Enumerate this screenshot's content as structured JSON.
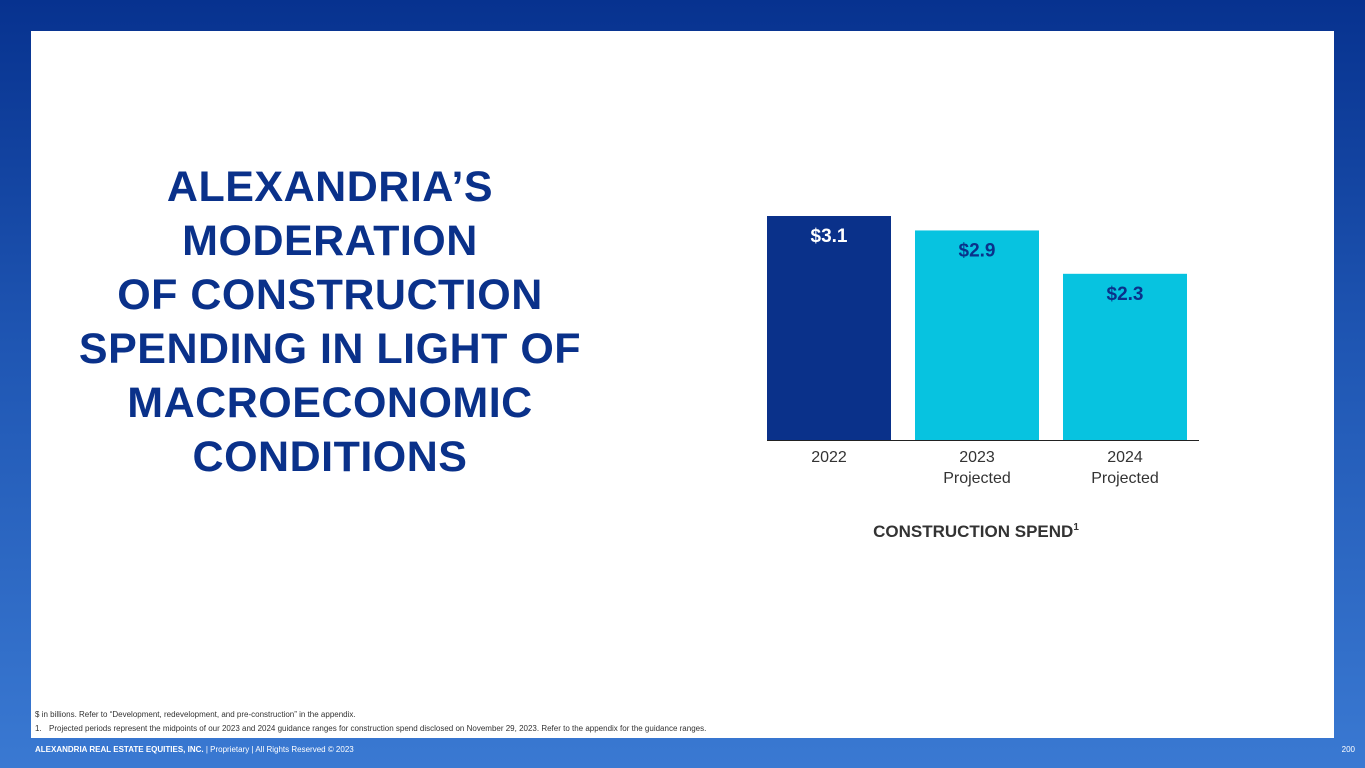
{
  "slide": {
    "headline_lines": [
      "ALEXANDRIA’S",
      "MODERATION",
      "OF CONSTRUCTION",
      "SPENDING IN LIGHT OF",
      "MACROECONOMIC",
      "CONDITIONS"
    ],
    "footnote_general": "$ in billions. Refer to “Development, redevelopment, and pre-construction” in the appendix.",
    "footnote_1_marker": "1.",
    "footnote_1_text": "Projected periods represent the midpoints of our 2023 and 2024 guidance ranges for construction spend disclosed on November 29, 2023. Refer to the appendix for the guidance ranges.",
    "footer_company": "ALEXANDRIA REAL ESTATE EQUITIES, INC.",
    "footer_rest": " | Proprietary | All Rights Reserved © 2023",
    "page_number": "200"
  },
  "chart_data": {
    "type": "bar",
    "categories": [
      [
        "2022"
      ],
      [
        "2023",
        "Projected"
      ],
      [
        "2024",
        "Projected"
      ]
    ],
    "values": [
      3.1,
      2.9,
      2.3
    ],
    "data_labels": [
      "$3.1",
      "$2.9",
      "$2.3"
    ],
    "bar_colors": [
      "#0a318a",
      "#07c3e0",
      "#07c3e0"
    ],
    "title": "CONSTRUCTION SPEND",
    "title_superscript": "1",
    "ylim": [
      0,
      3.1
    ],
    "grid": false,
    "legend": "none",
    "colors": {
      "title": "#333333",
      "label_dark": "#ffffff",
      "label_light": "#0a318a",
      "axis": "#333333"
    }
  }
}
